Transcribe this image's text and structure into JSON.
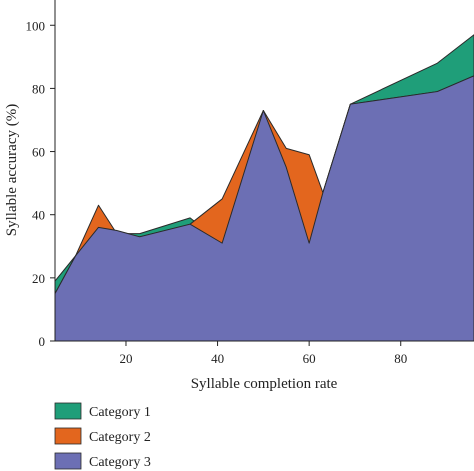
{
  "chart_data": {
    "type": "area",
    "title": "",
    "xlabel": "Syllable completion rate",
    "ylabel": "Syllable accuracy (%)",
    "xlim": [
      4.5,
      96
    ],
    "ylim": [
      0,
      108
    ],
    "xticks": [
      20,
      40,
      60,
      80
    ],
    "yticks": [
      0,
      20,
      40,
      60,
      80,
      100
    ],
    "grid": false,
    "legend_position": "bottom-left",
    "series": [
      {
        "name": "Category 1",
        "color": "#1f9e79",
        "x": [
          4.5,
          9,
          14,
          18,
          23,
          34,
          41,
          50,
          55,
          60,
          63,
          69,
          88,
          96
        ],
        "y": [
          19,
          27,
          35,
          34,
          34,
          39,
          31,
          73,
          57,
          31,
          47,
          75,
          88,
          97
        ]
      },
      {
        "name": "Category 2",
        "color": "#e3661e",
        "x": [
          4.5,
          9,
          14,
          18,
          23,
          34,
          41,
          50,
          55,
          60,
          63,
          69,
          88,
          96
        ],
        "y": [
          15,
          27,
          43,
          34,
          33,
          37,
          45,
          73,
          61,
          59,
          47,
          75,
          79,
          84
        ]
      },
      {
        "name": "Category 3",
        "color": "#6c6fb4",
        "x": [
          4.5,
          9,
          14,
          18,
          23,
          34,
          41,
          50,
          55,
          60,
          63,
          69,
          88,
          96
        ],
        "y": [
          15,
          27,
          36,
          35,
          33,
          37,
          31,
          73,
          55,
          31,
          47,
          75,
          79,
          84
        ]
      }
    ]
  }
}
